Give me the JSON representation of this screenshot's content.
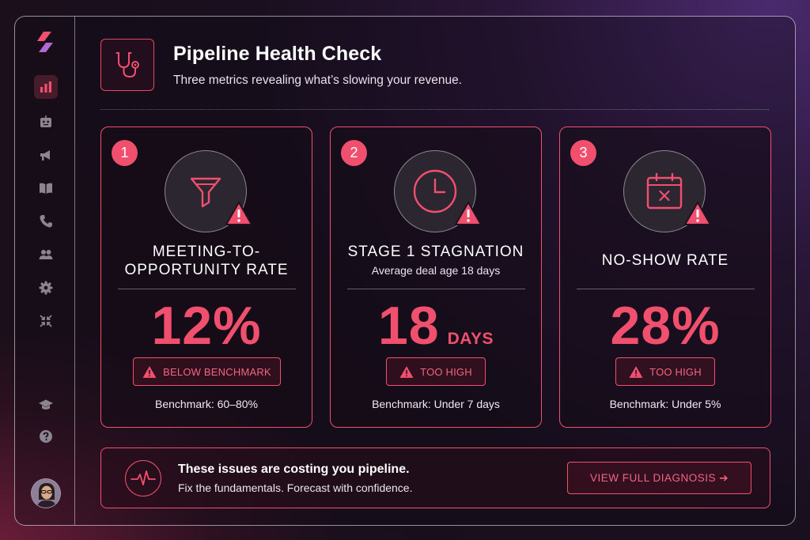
{
  "header": {
    "title": "Pipeline Health Check",
    "subtitle": "Three metrics revealing what’s slowing your revenue."
  },
  "sidebar": {
    "items": [
      {
        "icon": "chart-icon",
        "active": true
      },
      {
        "icon": "bot-icon"
      },
      {
        "icon": "megaphone-icon"
      },
      {
        "icon": "book-icon"
      },
      {
        "icon": "phone-icon"
      },
      {
        "icon": "users-icon"
      },
      {
        "icon": "gear-icon"
      },
      {
        "icon": "collapse-icon"
      },
      {
        "icon": "graduation-cap-icon"
      },
      {
        "icon": "help-icon"
      }
    ]
  },
  "cards": [
    {
      "number": "1",
      "title_line1": "MEETING-TO-",
      "title_line2": "OPPORTUNITY RATE",
      "value": "12%",
      "status": "BELOW BENCHMARK",
      "benchmark": "Benchmark: 60–80%",
      "icon": "funnel-icon"
    },
    {
      "number": "2",
      "title_line1": "STAGE 1 STAGNATION",
      "subtitle": "Average deal age 18 days",
      "value": "18",
      "unit": "DAYS",
      "status": "TOO HIGH",
      "benchmark": "Benchmark: Under 7 days",
      "icon": "clock-icon"
    },
    {
      "number": "3",
      "title_line1": "NO-SHOW RATE",
      "value": "28%",
      "status": "TOO HIGH",
      "benchmark": "Benchmark: Under 5%",
      "icon": "calendar-x-icon"
    }
  ],
  "footer": {
    "title": "These issues are costing you pipeline.",
    "subtitle": "Fix the fundamentals. Forecast with confidence.",
    "cta": "VIEW FULL DIAGNOSIS ➔"
  },
  "colors": {
    "accent": "#f0506e",
    "background": "#190f1e"
  }
}
